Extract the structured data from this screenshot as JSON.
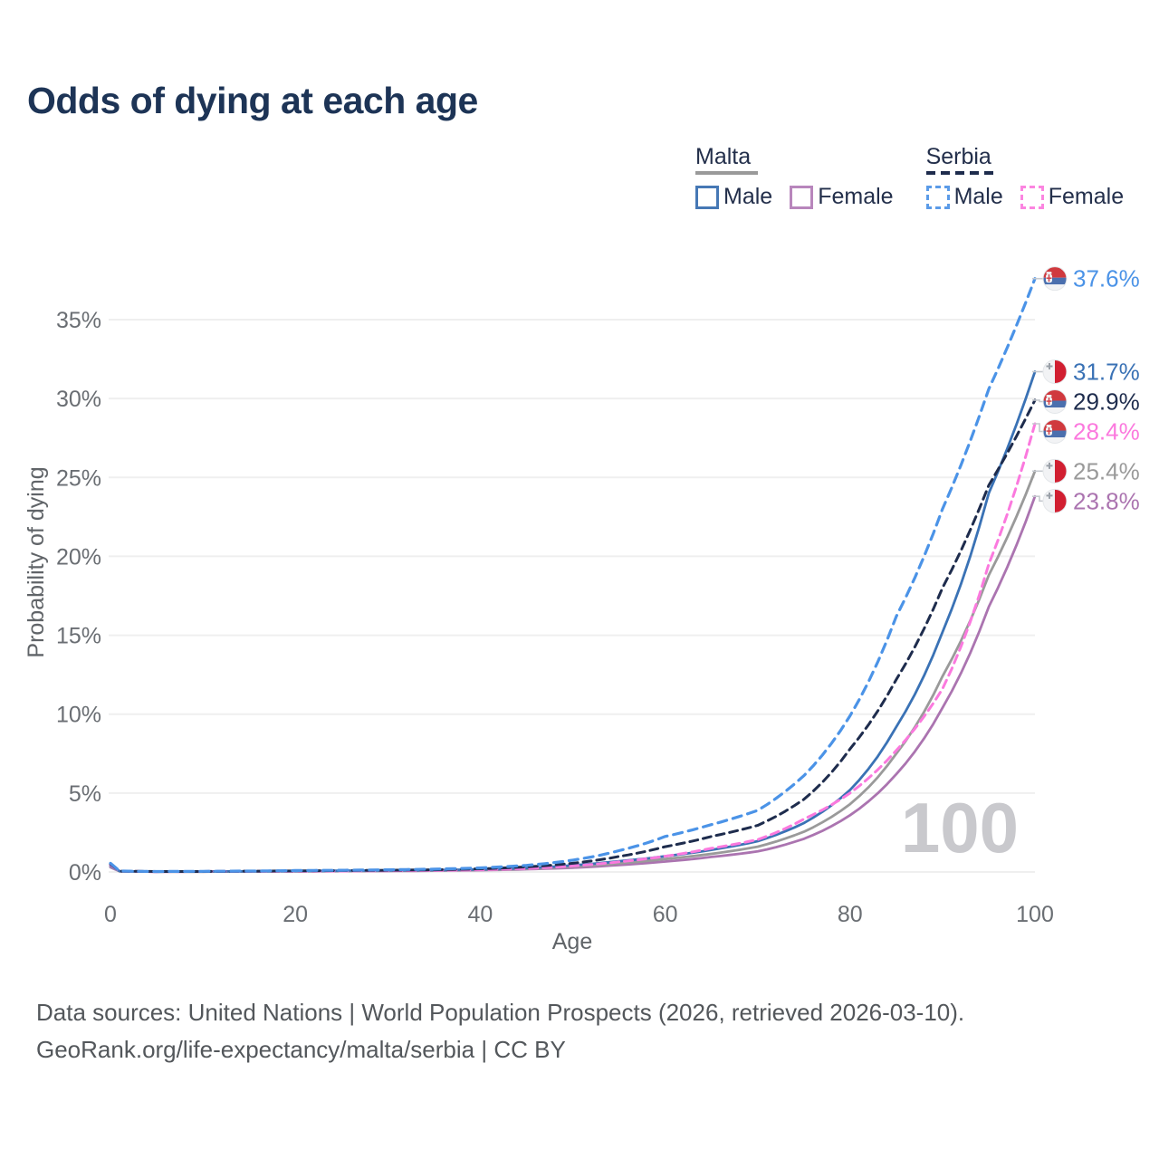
{
  "header": {
    "title": "Odds of dying at each age"
  },
  "legend": {
    "groups": [
      {
        "label": "Malta",
        "line_style": "solid",
        "underline_color": "#9a9a9a",
        "items": [
          {
            "label": "Male",
            "color": "#4678b5"
          },
          {
            "label": "Female",
            "color": "#b886bc"
          }
        ]
      },
      {
        "label": "Serbia",
        "line_style": "dashed",
        "underline_color": "#1e2c4d",
        "items": [
          {
            "label": "Male",
            "color": "#5b9be8"
          },
          {
            "label": "Female",
            "color": "#fb85e0"
          }
        ]
      }
    ]
  },
  "chart_data": {
    "type": "line",
    "title": "Odds of dying at each age",
    "xlabel": "Age",
    "ylabel": "Probability of dying",
    "xlim": [
      0,
      100
    ],
    "ylim": [
      0,
      38.5
    ],
    "xticks": [
      0,
      20,
      40,
      60,
      80,
      100
    ],
    "ytick_labels": [
      "0%",
      "5%",
      "10%",
      "15%",
      "20%",
      "25%",
      "30%",
      "35%"
    ],
    "ytick_values": [
      0,
      5,
      10,
      15,
      20,
      25,
      30,
      35
    ],
    "grid": true,
    "legend_position": "top-right",
    "watermark": "100",
    "ages": [
      0,
      1,
      5,
      10,
      15,
      20,
      25,
      30,
      35,
      40,
      45,
      50,
      55,
      60,
      65,
      70,
      75,
      80,
      85,
      90,
      95,
      100
    ],
    "series": [
      {
        "key": "serbia-male",
        "name": "Serbia Male",
        "country": "Serbia",
        "sex": "Male",
        "style": "dashed",
        "color": "#4b93e7",
        "dash": "10 7",
        "width": 3.2,
        "end_label": "37.6%",
        "flag_icon": "serbia-flag-icon",
        "values": [
          0.55,
          0.06,
          0.03,
          0.04,
          0.06,
          0.09,
          0.11,
          0.14,
          0.18,
          0.26,
          0.42,
          0.75,
          1.35,
          2.25,
          3.0,
          3.9,
          6.1,
          9.9,
          16.2,
          23.0,
          30.6,
          37.6
        ]
      },
      {
        "key": "malta-male",
        "name": "Malta Male",
        "country": "Malta",
        "sex": "Male",
        "style": "solid",
        "color": "#3a72b5",
        "dash": null,
        "width": 2.8,
        "end_label": "31.7%",
        "flag_icon": "malta-flag-icon",
        "values": [
          0.4,
          0.05,
          0.02,
          0.03,
          0.04,
          0.06,
          0.08,
          0.1,
          0.12,
          0.16,
          0.25,
          0.42,
          0.68,
          1.0,
          1.4,
          1.95,
          3.1,
          5.2,
          9.2,
          15.2,
          24.0,
          31.7
        ]
      },
      {
        "key": "serbia-total",
        "name": "Serbia Both sexes",
        "country": "Serbia",
        "sex": "Both",
        "style": "dashed",
        "color": "#1e2c4d",
        "dash": "9 6",
        "width": 3,
        "end_label": "29.9%",
        "flag_icon": "serbia-flag-icon",
        "values": [
          0.5,
          0.05,
          0.03,
          0.03,
          0.05,
          0.07,
          0.09,
          0.11,
          0.14,
          0.2,
          0.32,
          0.55,
          0.98,
          1.6,
          2.25,
          2.95,
          4.6,
          7.8,
          12.2,
          18.0,
          24.5,
          29.9
        ]
      },
      {
        "key": "serbia-female",
        "name": "Serbia Female",
        "country": "Serbia",
        "sex": "Female",
        "style": "dashed",
        "color": "#fb79de",
        "dash": "9 6",
        "width": 3,
        "end_label": "28.4%",
        "flag_icon": "serbia-flag-icon",
        "values": [
          0.45,
          0.05,
          0.02,
          0.03,
          0.04,
          0.05,
          0.06,
          0.08,
          0.1,
          0.14,
          0.22,
          0.38,
          0.64,
          1.0,
          1.5,
          2.05,
          3.35,
          5.0,
          7.7,
          11.6,
          19.5,
          28.4
        ]
      },
      {
        "key": "malta-total",
        "name": "Malta Both sexes",
        "country": "Malta",
        "sex": "Both",
        "style": "solid",
        "color": "#9a9a9a",
        "dash": null,
        "width": 2.8,
        "end_label": "25.4%",
        "flag_icon": "malta-flag-icon",
        "values": [
          0.35,
          0.04,
          0.02,
          0.02,
          0.03,
          0.05,
          0.06,
          0.08,
          0.1,
          0.13,
          0.2,
          0.34,
          0.55,
          0.82,
          1.15,
          1.6,
          2.55,
          4.3,
          7.5,
          12.4,
          18.8,
          25.4
        ]
      },
      {
        "key": "malta-female",
        "name": "Malta Female",
        "country": "Malta",
        "sex": "Female",
        "style": "solid",
        "color": "#ab74b0",
        "dash": null,
        "width": 2.8,
        "end_label": "23.8%",
        "flag_icon": "malta-flag-icon",
        "values": [
          0.3,
          0.04,
          0.02,
          0.02,
          0.03,
          0.04,
          0.05,
          0.06,
          0.08,
          0.11,
          0.17,
          0.27,
          0.44,
          0.66,
          0.95,
          1.3,
          2.1,
          3.6,
          6.2,
          10.4,
          16.8,
          23.8
        ]
      }
    ],
    "colors": {
      "grid": "#efefef",
      "tick_text": "#6a6e73",
      "axis_title_text": "#606468",
      "watermark": "#c9c9cd",
      "connector": "#c5c9cf",
      "serbia_flag_red": "#d0393e",
      "serbia_flag_blue": "#4a6fae",
      "malta_flag_red": "#d11f31",
      "flag_white": "#f2f3f5"
    }
  },
  "footer": {
    "line1": "Data sources: United Nations | World Population Prospects (2026, retrieved 2026-03-10).",
    "line2": "GeoRank.org/life-expectancy/malta/serbia | CC BY"
  }
}
